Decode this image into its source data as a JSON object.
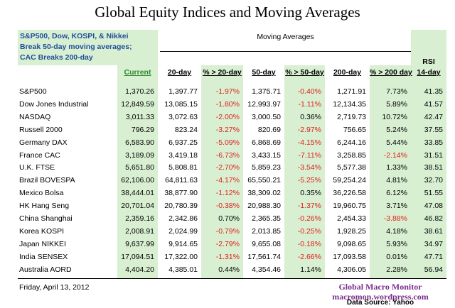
{
  "title": "Global Equity Indices and Moving Averages",
  "header_note": [
    "S&P500, Dow, KOSPI, & Nikkei",
    "Break 50-day moving averages;",
    "CAC Breaks 200-day"
  ],
  "table": {
    "group_header": "Moving Averages",
    "rsi_header": "RSI",
    "columns": [
      "Current",
      "20-day",
      "% > 20-day",
      "50-day",
      "% > 50-day",
      "200-day",
      "% > 200 day",
      "14-day"
    ],
    "rows": [
      [
        "S&P500",
        "1,370.26",
        "1,397.77",
        "-1.97%",
        "1,375.71",
        "-0.40%",
        "1,271.91",
        "7.73%",
        "41.35"
      ],
      [
        "Dow Jones Industrial",
        "12,849.59",
        "13,085.15",
        "-1.80%",
        "12,993.97",
        "-1.11%",
        "12,134.35",
        "5.89%",
        "41.57"
      ],
      [
        "NASDAQ",
        "3,011.33",
        "3,072.63",
        "-2.00%",
        "3,000.50",
        "0.36%",
        "2,719.73",
        "10.72%",
        "42.47"
      ],
      [
        "Russell 2000",
        "796.29",
        "823.24",
        "-3.27%",
        "820.69",
        "-2.97%",
        "756.65",
        "5.24%",
        "37.55"
      ],
      [
        "Germany DAX",
        "6,583.90",
        "6,937.25",
        "-5.09%",
        "6,868.69",
        "-4.15%",
        "6,244.16",
        "5.44%",
        "33.85"
      ],
      [
        "France CAC",
        "3,189.09",
        "3,419.18",
        "-6.73%",
        "3,433.15",
        "-7.11%",
        "3,258.85",
        "-2.14%",
        "31.51"
      ],
      [
        "U.K. FTSE",
        "5,651.80",
        "5,808.81",
        "-2.70%",
        "5,859.23",
        "-3.54%",
        "5,577.38",
        "1.33%",
        "38.51"
      ],
      [
        "Brazil BOVESPA",
        "62,106.00",
        "64,811.63",
        "-4.17%",
        "65,550.21",
        "-5.25%",
        "59,254.24",
        "4.81%",
        "32.70"
      ],
      [
        "Mexico Bolsa",
        "38,444.01",
        "38,877.90",
        "-1.12%",
        "38,309.02",
        "0.35%",
        "36,226.58",
        "6.12%",
        "51.55"
      ],
      [
        "HK  Hang Seng",
        "20,701.04",
        "20,780.39",
        "-0.38%",
        "20,988.30",
        "-1.37%",
        "19,960.75",
        "3.71%",
        "47.08"
      ],
      [
        "China Shanghai",
        "2,359.16",
        "2,342.86",
        "0.70%",
        "2,365.35",
        "-0.26%",
        "2,454.33",
        "-3.88%",
        "46.82"
      ],
      [
        "Korea KOSPI",
        "2,008.91",
        "2,024.99",
        "-0.79%",
        "2,013.85",
        "-0.25%",
        "1,928.25",
        "4.18%",
        "38.61"
      ],
      [
        "Japan NIKKEI",
        "9,637.99",
        "9,914.65",
        "-2.79%",
        "9,655.08",
        "-0.18%",
        "9,098.65",
        "5.93%",
        "34.97"
      ],
      [
        "India SENSEX",
        "17,094.51",
        "17,322.00",
        "-1.31%",
        "17,561.74",
        "-2.66%",
        "17,093.58",
        "0.01%",
        "47.71"
      ],
      [
        "Australia AORD",
        "4,404.20",
        "4,385.01",
        "0.44%",
        "4,354.46",
        "1.14%",
        "4,306.05",
        "2.28%",
        "56.94"
      ]
    ]
  },
  "footer": {
    "date": "Friday, April 13, 2012",
    "brand": "Global Macro Monitor",
    "site": "macromon.wordpress.com",
    "source": "Data Source: Yahoo"
  }
}
